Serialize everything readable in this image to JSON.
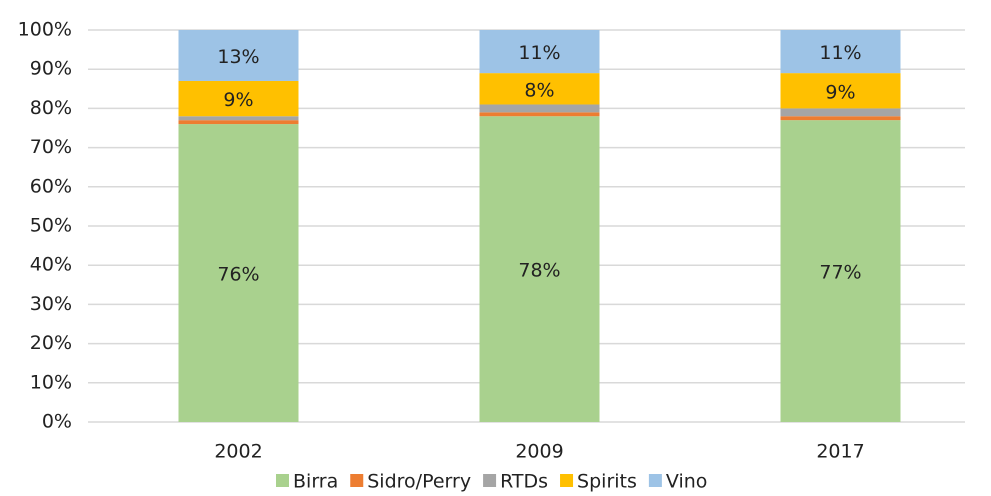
{
  "chart_data": {
    "type": "stacked_bar",
    "categories": [
      "2002",
      "2009",
      "2017"
    ],
    "series": [
      {
        "name": "Birra",
        "color": "#a9d18e",
        "values": [
          76,
          78,
          77
        ],
        "value_labels": [
          "76%",
          "78%",
          "77%"
        ]
      },
      {
        "name": "Sidro/Perry",
        "color": "#ed7d31",
        "values": [
          1,
          1,
          1
        ]
      },
      {
        "name": "RTDs",
        "color": "#a5a5a5",
        "values": [
          1,
          2,
          2
        ]
      },
      {
        "name": "Spirits",
        "color": "#ffc000",
        "values": [
          9,
          8,
          9
        ],
        "value_labels": [
          "9%",
          "8%",
          "9%"
        ]
      },
      {
        "name": "Vino",
        "color": "#9dc3e6",
        "values": [
          13,
          11,
          11
        ],
        "value_labels": [
          "13%",
          "11%",
          "11%"
        ]
      }
    ],
    "ylim": [
      0,
      100
    ],
    "yticks": [
      {
        "value": 0,
        "label": "0%"
      },
      {
        "value": 10,
        "label": "10%"
      },
      {
        "value": 20,
        "label": "20%"
      },
      {
        "value": 30,
        "label": "30%"
      },
      {
        "value": 40,
        "label": "40%"
      },
      {
        "value": 50,
        "label": "50%"
      },
      {
        "value": 60,
        "label": "60%"
      },
      {
        "value": 70,
        "label": "70%"
      },
      {
        "value": 80,
        "label": "80%"
      },
      {
        "value": 90,
        "label": "90%"
      },
      {
        "value": 100,
        "label": "100%"
      }
    ],
    "grid": true,
    "legend": "bottom"
  }
}
